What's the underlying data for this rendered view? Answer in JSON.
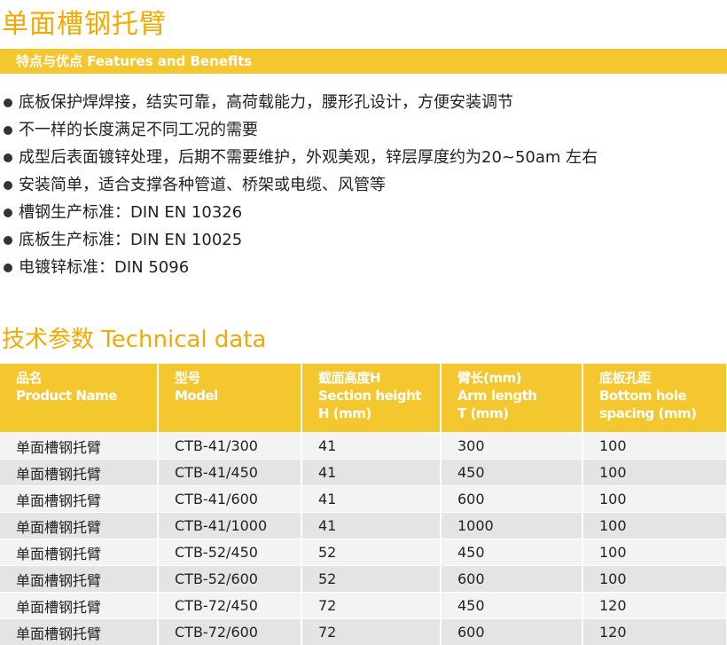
{
  "title": "单面槽钢托臂",
  "features_header": "特点与优点 Features and Benefits",
  "features": [
    "底板保护焊焊接，结实可靠，高荷载能力，腰形孔设计，方便安装调节",
    "不一样的长度满足不同工况的需要",
    "成型后表面镀锌处理，后期不需要维护，外观美观，锌层厚度约为20~50am 左右",
    "安装简单，适合支撑各种管道、桥架或电缆、风管等",
    "槽钢生产标准：DIN EN 10326",
    "底板生产标准：DIN EN 10025",
    "电镀锌标准：DIN 5096"
  ],
  "tech_title": "技术参数 Technical data",
  "columns": [
    [
      "品名",
      "Product Name",
      ""
    ],
    [
      "型号",
      "Model",
      ""
    ],
    [
      "截面高度H",
      "Section height",
      "H (mm)"
    ],
    [
      "臂长(mm)",
      "Arm length",
      "T (mm)"
    ],
    [
      "底板孔距",
      "Bottom hole",
      "spacing (mm)"
    ]
  ],
  "rows": [
    [
      "单面槽钢托臂",
      "CTB-41/300",
      "41",
      "300",
      "100"
    ],
    [
      "单面槽钢托臂",
      "CTB-41/450",
      "41",
      "450",
      "100"
    ],
    [
      "单面槽钢托臂",
      "CTB-41/600",
      "41",
      "600",
      "100"
    ],
    [
      "单面槽钢托臂",
      "CTB-41/1000",
      "41",
      "1000",
      "100"
    ],
    [
      "单面槽钢托臂",
      "CTB-52/450",
      "52",
      "450",
      "100"
    ],
    [
      "单面槽钢托臂",
      "CTB-52/600",
      "52",
      "600",
      "100"
    ],
    [
      "单面槽钢托臂",
      "CTB-72/450",
      "72",
      "450",
      "120"
    ],
    [
      "单面槽钢托臂",
      "CTB-72/600",
      "72",
      "600",
      "120"
    ]
  ],
  "colors": {
    "accent": "#f2a900",
    "bar": "#f5c72f"
  }
}
